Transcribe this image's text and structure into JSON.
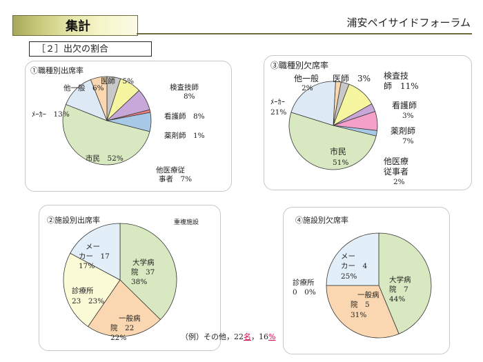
{
  "header": {
    "title": "集計",
    "brand": "浦安ペイサイドフォーラム"
  },
  "section": {
    "label": "［２］出欠の割合"
  },
  "colors": {
    "gray": "#c8c8c8",
    "yellow": "#f6f6a0",
    "purple": "#c8a8d8",
    "red": "#f08080",
    "blue": "#a8c8e8",
    "lightblue": "#dde9f4",
    "green": "#d8e8c0",
    "orange": "#fad7b0",
    "pink": "#f4a0c8",
    "cream": "#fbfbd8",
    "dblue": "#e2eef8"
  },
  "panels": {
    "p1": {
      "title": "①職種別出席率",
      "labels": {
        "s0": "医師　5%",
        "s1a": "検査技師",
        "s1b": "8%",
        "s2": "看護師　8%",
        "s3": "薬剤師　1%",
        "s4a": "他医療従",
        "s4b": "事者　7%",
        "s5": "市民　52%",
        "s6": "ﾒｰｶｰ　13%",
        "s7": "他一般　6%"
      }
    },
    "p3": {
      "title": "③職種別欠席率",
      "labels": {
        "s0a": "他一般",
        "s0b": "2%",
        "s1": "医師　3%",
        "s2a": "検査技",
        "s2b": "師　11%",
        "s3a": "看護師",
        "s3b": "3%",
        "s4a": "薬剤師",
        "s4b": "7%",
        "s5a": "他医療",
        "s5b": "従事者",
        "s5c": "2%",
        "s6a": "市民",
        "s6b": "51%",
        "s7a": "ﾒｰｶｰ",
        "s7b": "21%"
      }
    },
    "p2": {
      "title": "②施設別出席率",
      "note": "重複施設",
      "labels": {
        "s0a": "大学病",
        "s0b": "院　37",
        "s0c": "38%",
        "s1a": "一般病",
        "s1b": "院　22",
        "s1c": "22%",
        "s2a": "診療所",
        "s2b": "23　23%",
        "s3a": "メー",
        "s3b": "カー　17",
        "s3c": "17%"
      },
      "example": {
        "prefix": "（例）その他，22",
        "unit1": "名",
        "mid": "，16",
        "unit2": "%"
      }
    },
    "p4": {
      "title": "④施設別欠席率",
      "labels": {
        "s0a": "大学病",
        "s0b": "院　7",
        "s0c": "44%",
        "s1a": "一般病",
        "s1b": "院　5",
        "s1c": "31%",
        "s2a": "診療所",
        "s2b": "0　0%",
        "s3a": "メー",
        "s3b": "カー　4",
        "s3c": "25%"
      }
    }
  },
  "chart_data": [
    {
      "type": "pie",
      "title": "①職種別出席率",
      "categories": [
        "医師",
        "検査技師",
        "看護師",
        "薬剤師",
        "他医療従事者",
        "市民",
        "ﾒｰｶｰ",
        "他一般"
      ],
      "values": [
        5,
        8,
        8,
        1,
        7,
        52,
        13,
        6
      ]
    },
    {
      "type": "pie",
      "title": "③職種別欠席率",
      "categories": [
        "他一般",
        "医師",
        "検査技師",
        "看護師",
        "薬剤師",
        "他医療従事者",
        "市民",
        "ﾒｰｶｰ"
      ],
      "values": [
        2,
        3,
        11,
        3,
        7,
        2,
        51,
        21
      ]
    },
    {
      "type": "pie",
      "title": "②施設別出席率",
      "categories": [
        "大学病院",
        "一般病院",
        "診療所",
        "メーカー"
      ],
      "values": [
        37,
        22,
        23,
        17
      ],
      "percents": [
        38,
        22,
        23,
        17
      ]
    },
    {
      "type": "pie",
      "title": "④施設別欠席率",
      "categories": [
        "大学病院",
        "一般病院",
        "診療所",
        "メーカー"
      ],
      "values": [
        7,
        5,
        0,
        4
      ],
      "percents": [
        44,
        31,
        0,
        25
      ]
    }
  ]
}
